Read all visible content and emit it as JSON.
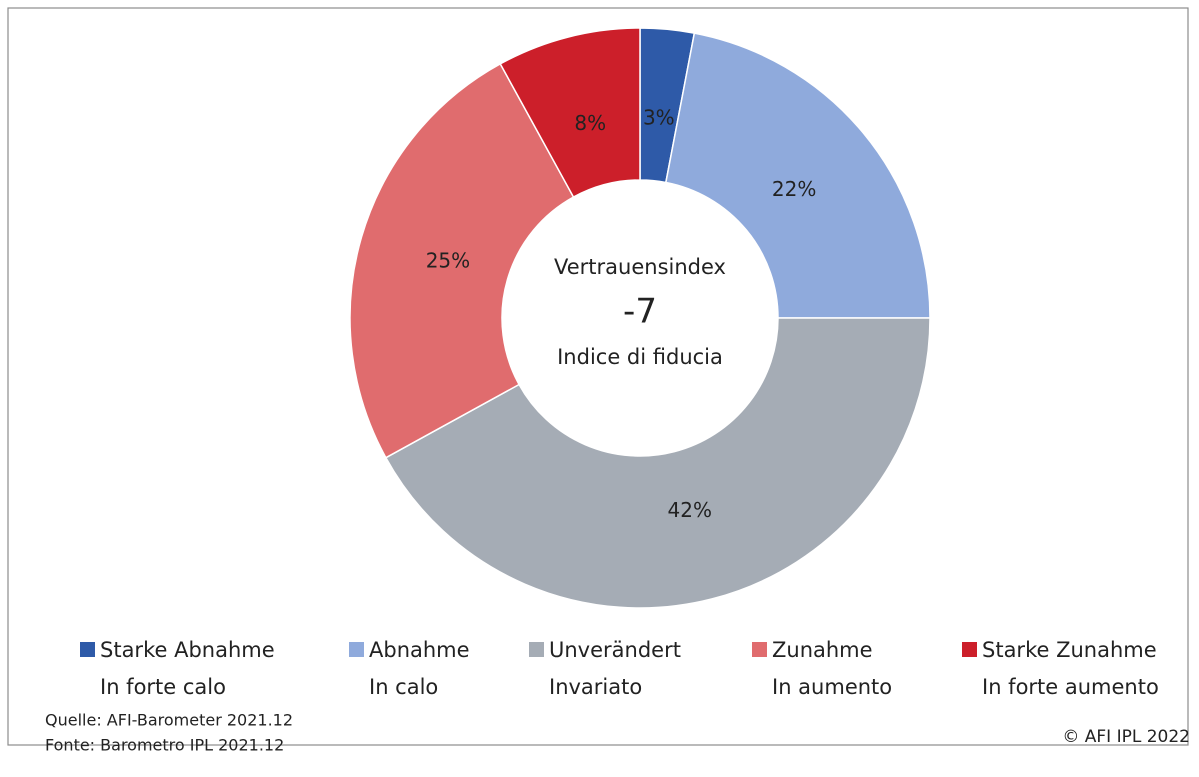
{
  "chart_data": {
    "type": "donut",
    "categories": [
      [
        "Starke Abnahme",
        "In forte calo"
      ],
      [
        "Abnahme",
        "In calo"
      ],
      [
        "Unverändert",
        "Invariato"
      ],
      [
        "Zunahme",
        "In aumento"
      ],
      [
        "Starke Zunahme",
        "In forte aumento"
      ]
    ],
    "values": [
      3,
      22,
      42,
      25,
      8
    ],
    "value_labels": [
      "3%",
      "22%",
      "42%",
      "25%",
      "8%"
    ],
    "colors": [
      "#2e5aa8",
      "#8faadc",
      "#a5acb5",
      "#e06c6e",
      "#cc1f2a"
    ],
    "center_title": "Vertrauensindex",
    "center_value": -7,
    "center_subtitle": "Indice di fiducia",
    "legend": "bottom",
    "source": [
      "Quelle: AFI-Barometer 2021.12",
      "Fonte: Barometro IPL 2021.12"
    ],
    "copyright": "© AFI IPL 2022"
  }
}
